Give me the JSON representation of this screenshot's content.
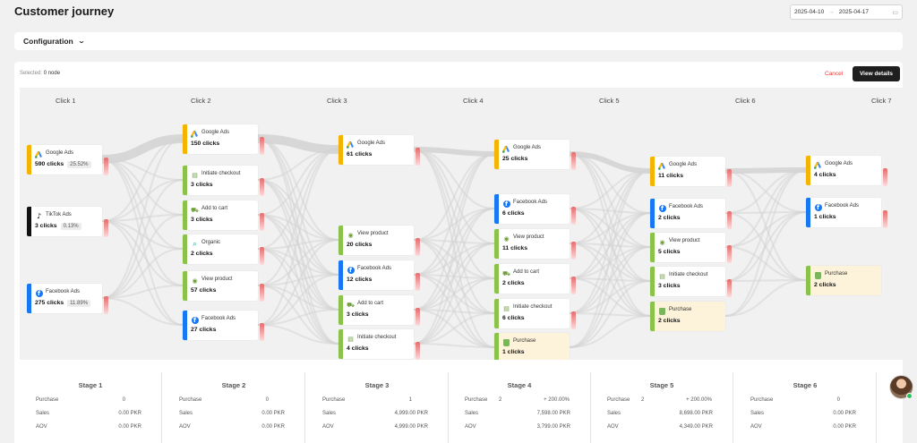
{
  "title": "Customer journey",
  "date_range": {
    "start": "2025-04-10",
    "arrow": "→",
    "end": "2025-04-17",
    "icon": "calendar-icon"
  },
  "configuration": {
    "label": "Configuration",
    "icon": "chevron-down-icon"
  },
  "toolbar": {
    "selected_label": "Selected:",
    "selected_value": "0 node",
    "cancel": "Cancel",
    "view_details": "View details"
  },
  "columns": [
    "Click 1",
    "Click 2",
    "Click 3",
    "Click 4",
    "Click 5",
    "Click 6",
    "Click 7"
  ],
  "node_types": {
    "google": {
      "color": "#f4b400",
      "icon": "google-ads-icon"
    },
    "tiktok": {
      "color": "#111111",
      "icon": "tiktok-icon"
    },
    "facebook": {
      "color": "#1877f2",
      "icon": "facebook-icon"
    },
    "checkout": {
      "color": "#8bc34a",
      "icon": "checkout-icon"
    },
    "cart": {
      "color": "#8bc34a",
      "icon": "cart-icon"
    },
    "organic": {
      "color": "#8bc34a",
      "icon": "organic-search-icon"
    },
    "view": {
      "color": "#8bc34a",
      "icon": "eye-icon"
    },
    "purchase": {
      "color": "#8bc34a",
      "icon": "shopify-bag-icon"
    }
  },
  "nodes": [
    [
      {
        "type": "google",
        "name": "Google Ads",
        "value": "590 clicks",
        "pct": "25.52%"
      },
      {
        "type": "tiktok",
        "name": "TikTok Ads",
        "value": "3 clicks",
        "pct": "0.13%"
      },
      {
        "type": "facebook",
        "name": "Facebook Ads",
        "value": "275 clicks",
        "pct": "11.89%"
      }
    ],
    [
      {
        "type": "google",
        "name": "Google Ads",
        "value": "150 clicks"
      },
      {
        "type": "checkout",
        "name": "Initiate checkout",
        "value": "3 clicks"
      },
      {
        "type": "cart",
        "name": "Add to cart",
        "value": "3 clicks"
      },
      {
        "type": "organic",
        "name": "Organic",
        "value": "2 clicks"
      },
      {
        "type": "view",
        "name": "View product",
        "value": "57 clicks"
      },
      {
        "type": "facebook",
        "name": "Facebook Ads",
        "value": "27 clicks"
      }
    ],
    [
      {
        "type": "google",
        "name": "Google Ads",
        "value": "61 clicks"
      },
      {
        "type": "view",
        "name": "View product",
        "value": "20 clicks"
      },
      {
        "type": "facebook",
        "name": "Facebook Ads",
        "value": "12 clicks"
      },
      {
        "type": "cart",
        "name": "Add to cart",
        "value": "3 clicks"
      },
      {
        "type": "checkout",
        "name": "Initiate checkout",
        "value": "4 clicks"
      }
    ],
    [
      {
        "type": "google",
        "name": "Google Ads",
        "value": "25 clicks"
      },
      {
        "type": "facebook",
        "name": "Facebook Ads",
        "value": "6 clicks"
      },
      {
        "type": "view",
        "name": "View product",
        "value": "11 clicks"
      },
      {
        "type": "cart",
        "name": "Add to cart",
        "value": "2 clicks"
      },
      {
        "type": "checkout",
        "name": "Initiate checkout",
        "value": "6 clicks"
      },
      {
        "type": "purchase",
        "name": "Purchase",
        "value": "1 clicks"
      }
    ],
    [
      {
        "type": "google",
        "name": "Google Ads",
        "value": "11 clicks"
      },
      {
        "type": "facebook",
        "name": "Facebook Ads",
        "value": "2 clicks"
      },
      {
        "type": "view",
        "name": "View product",
        "value": "5 clicks"
      },
      {
        "type": "checkout",
        "name": "Initiate checkout",
        "value": "3 clicks"
      },
      {
        "type": "purchase",
        "name": "Purchase",
        "value": "2 clicks"
      }
    ],
    [
      {
        "type": "google",
        "name": "Google Ads",
        "value": "4 clicks"
      },
      {
        "type": "facebook",
        "name": "Facebook Ads",
        "value": "1 clicks"
      },
      {
        "type": "purchase",
        "name": "Purchase",
        "value": "2 clicks"
      }
    ]
  ],
  "stages": [
    {
      "title": "Stage 1",
      "purchase": "0",
      "change": "",
      "sales": "0.00 PKR",
      "aov": "0.00 PKR"
    },
    {
      "title": "Stage 2",
      "purchase": "0",
      "change": "",
      "sales": "0.00 PKR",
      "aov": "0.00 PKR"
    },
    {
      "title": "Stage 3",
      "purchase": "1",
      "change": "",
      "sales": "4,999.00 PKR",
      "aov": "4,999.00 PKR"
    },
    {
      "title": "Stage 4",
      "purchase": "2",
      "change": "+ 200.00%",
      "sales": "7,598.00 PKR",
      "aov": "3,799.00 PKR"
    },
    {
      "title": "Stage 5",
      "purchase": "2",
      "change": "+ 200.00%",
      "sales": "8,698.00 PKR",
      "aov": "4,349.00 PKR"
    },
    {
      "title": "Stage 6",
      "purchase": "0",
      "change": "",
      "sales": "0.00 PKR",
      "aov": "0.00 PKR"
    }
  ],
  "stage_labels": {
    "purchase": "Purchase",
    "sales": "Sales",
    "aov": "AOV"
  },
  "avatar": {
    "icon": "user-avatar",
    "status": "online"
  }
}
